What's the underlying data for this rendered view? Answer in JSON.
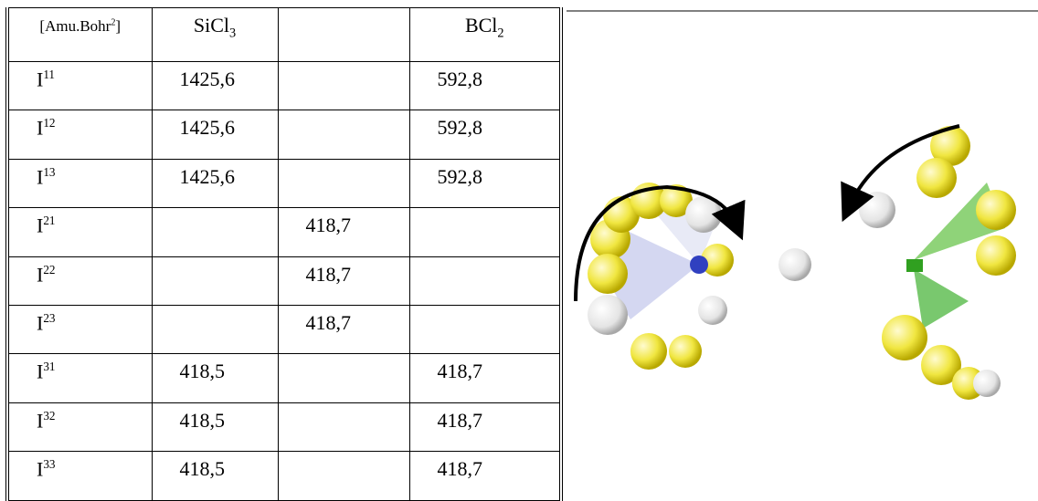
{
  "table": {
    "header": [
      {
        "base": "[Amu.Bohr",
        "sup": "2",
        "tail": "]"
      },
      {
        "base": "SiCl",
        "sub": "3"
      },
      null,
      {
        "base": "BCl",
        "sub": "2"
      }
    ],
    "rows": [
      [
        {
          "base": "I",
          "sup": "11"
        },
        "1425,6",
        null,
        "592,8"
      ],
      [
        {
          "base": "I",
          "sup": "12"
        },
        "1425,6",
        null,
        "592,8"
      ],
      [
        {
          "base": "I",
          "sup": "13"
        },
        "1425,6",
        null,
        "592,8"
      ],
      [
        {
          "base": "I",
          "sup": "21"
        },
        null,
        "418,7",
        null
      ],
      [
        {
          "base": "I",
          "sup": "22"
        },
        null,
        "418,7",
        null
      ],
      [
        {
          "base": "I",
          "sup": "23"
        },
        null,
        "418,7",
        null
      ],
      [
        {
          "base": "I",
          "sup": "31"
        },
        "418,5",
        null,
        "418,7"
      ],
      [
        {
          "base": "I",
          "sup": "32"
        },
        "418,5",
        null,
        "418,7"
      ],
      [
        {
          "base": "I",
          "sup": "33"
        },
        "418,5",
        null,
        "418,7"
      ]
    ]
  }
}
